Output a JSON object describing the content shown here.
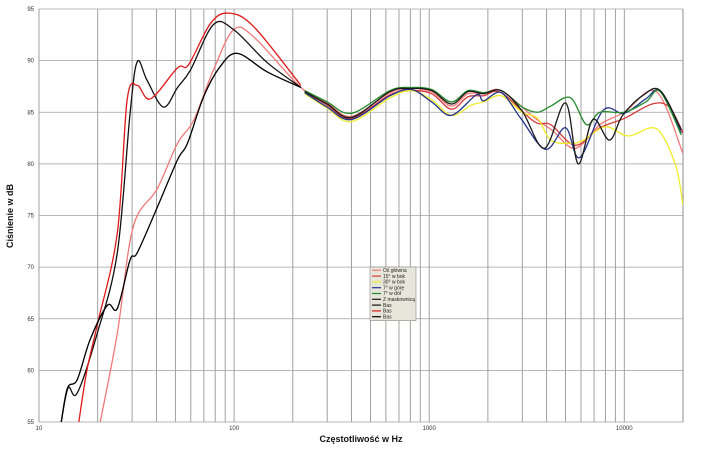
{
  "chart_data": {
    "type": "line",
    "title": "",
    "xlabel": "Częstotliwość w Hz",
    "ylabel": "Ciśnienie w dB",
    "xscale": "log",
    "xlim": [
      10,
      20000
    ],
    "ylim": [
      55,
      95
    ],
    "x_tick_labels": [
      "10",
      "100",
      "1000",
      "10000"
    ],
    "y_tick_labels": [
      "55",
      "60",
      "65",
      "70",
      "75",
      "80",
      "85",
      "90",
      "95"
    ],
    "grid": true,
    "legend_position": "center",
    "series": [
      {
        "name": "Oś główna",
        "color": "#f07878",
        "points": [
          [
            20.6,
            55
          ],
          [
            25.2,
            63.6
          ],
          [
            30.4,
            73.9
          ],
          [
            40.4,
            77.6
          ],
          [
            51.3,
            82
          ],
          [
            62,
            84.2
          ],
          [
            78.4,
            89.1
          ],
          [
            99.5,
            93
          ],
          [
            126,
            92.3
          ],
          [
            220,
            87.4
          ],
          [
            300,
            85.9
          ],
          [
            400,
            84.6
          ],
          [
            630,
            86.9
          ],
          [
            810,
            87.3
          ],
          [
            1030,
            87
          ],
          [
            1300,
            85.6
          ],
          [
            1580,
            86.8
          ],
          [
            1900,
            86.8
          ],
          [
            2340,
            87.1
          ],
          [
            3450,
            84.5
          ],
          [
            4300,
            83.2
          ],
          [
            5600,
            81.5
          ],
          [
            7500,
            83.8
          ],
          [
            10000,
            85
          ],
          [
            14600,
            87
          ],
          [
            20000,
            81
          ]
        ]
      },
      {
        "name": "15° w bok",
        "color": "#d83838",
        "points": [
          [
            230,
            87
          ],
          [
            300,
            85.7
          ],
          [
            400,
            84.4
          ],
          [
            630,
            86.7
          ],
          [
            810,
            87.1
          ],
          [
            1030,
            86.8
          ],
          [
            1300,
            85.3
          ],
          [
            1580,
            86.5
          ],
          [
            1900,
            86.6
          ],
          [
            2340,
            86.9
          ],
          [
            3450,
            84.1
          ],
          [
            4200,
            83.8
          ],
          [
            5600,
            81.8
          ],
          [
            7500,
            83.5
          ],
          [
            10000,
            84.4
          ],
          [
            13900,
            85.8
          ],
          [
            17000,
            85.5
          ],
          [
            20000,
            83
          ]
        ]
      },
      {
        "name": "30° w bok",
        "color": "#f0ec28",
        "points": [
          [
            230,
            86.8
          ],
          [
            300,
            85.4
          ],
          [
            400,
            84.1
          ],
          [
            630,
            86.4
          ],
          [
            810,
            87.1
          ],
          [
            1030,
            86.2
          ],
          [
            1300,
            84.7
          ],
          [
            1650,
            85.7
          ],
          [
            1900,
            86
          ],
          [
            2340,
            86.6
          ],
          [
            3000,
            85
          ],
          [
            3600,
            84.4
          ],
          [
            4200,
            82.3
          ],
          [
            5300,
            82
          ],
          [
            6200,
            82.3
          ],
          [
            8000,
            83.6
          ],
          [
            10500,
            82.7
          ],
          [
            14600,
            83.4
          ],
          [
            18300,
            79.9
          ],
          [
            20000,
            76
          ]
        ]
      },
      {
        "name": "7° w górę",
        "color": "#24348a",
        "points": [
          [
            230,
            86.9
          ],
          [
            300,
            85.5
          ],
          [
            400,
            84.3
          ],
          [
            630,
            86.6
          ],
          [
            810,
            87.2
          ],
          [
            1030,
            86
          ],
          [
            1300,
            84.7
          ],
          [
            1750,
            86.7
          ],
          [
            1900,
            86.1
          ],
          [
            2340,
            86.9
          ],
          [
            2950,
            84.4
          ],
          [
            3950,
            81.4
          ],
          [
            5000,
            83.5
          ],
          [
            5900,
            80.6
          ],
          [
            7800,
            85.2
          ],
          [
            10000,
            84.9
          ],
          [
            12900,
            86.3
          ],
          [
            15300,
            87
          ],
          [
            19600,
            83
          ]
        ]
      },
      {
        "name": "7° w dół",
        "color": "#248a2c",
        "points": [
          [
            230,
            87.1
          ],
          [
            300,
            86
          ],
          [
            400,
            84.9
          ],
          [
            630,
            87.1
          ],
          [
            810,
            87.4
          ],
          [
            1030,
            87.2
          ],
          [
            1300,
            86
          ],
          [
            1580,
            87.1
          ],
          [
            1900,
            86.9
          ],
          [
            2340,
            87.1
          ],
          [
            3000,
            85.5
          ],
          [
            3600,
            85
          ],
          [
            4200,
            85.6
          ],
          [
            5300,
            86.4
          ],
          [
            6400,
            83.8
          ],
          [
            7500,
            85
          ],
          [
            10000,
            85
          ],
          [
            12900,
            86
          ],
          [
            15300,
            87
          ],
          [
            19600,
            82.8
          ]
        ]
      },
      {
        "name": "Z maskownicą",
        "color": "#1a1a1a",
        "points": [
          [
            230,
            87
          ],
          [
            300,
            85.8
          ],
          [
            400,
            84.5
          ],
          [
            630,
            87
          ],
          [
            810,
            87.3
          ],
          [
            1030,
            87.1
          ],
          [
            1300,
            85.8
          ],
          [
            1580,
            87
          ],
          [
            1900,
            86.8
          ],
          [
            2340,
            87.1
          ],
          [
            3000,
            85.1
          ],
          [
            3900,
            81.5
          ],
          [
            5000,
            85.9
          ],
          [
            5800,
            80
          ],
          [
            6900,
            84.3
          ],
          [
            8400,
            82.3
          ],
          [
            9800,
            84.7
          ],
          [
            12400,
            86.6
          ],
          [
            15300,
            87.1
          ],
          [
            19600,
            83.3
          ]
        ]
      },
      {
        "name": "Bas",
        "color": "#111111",
        "points": [
          [
            13,
            55
          ],
          [
            14.1,
            58.3
          ],
          [
            15.7,
            57.8
          ],
          [
            19.9,
            63.6
          ],
          [
            25.2,
            71.4
          ],
          [
            29.3,
            84.9
          ],
          [
            31.9,
            89.9
          ],
          [
            35.8,
            88.1
          ],
          [
            43.4,
            85.5
          ],
          [
            51.3,
            87.4
          ],
          [
            59.8,
            89.1
          ],
          [
            78.4,
            93.5
          ],
          [
            99.5,
            93
          ],
          [
            148,
            89.8
          ],
          [
            220,
            87.4
          ]
        ]
      },
      {
        "name": "Bas",
        "color": "#e01818",
        "points": [
          [
            16,
            55
          ],
          [
            17.6,
            60
          ],
          [
            20,
            64.6
          ],
          [
            25.2,
            73.3
          ],
          [
            28.3,
            86.2
          ],
          [
            31.9,
            87.6
          ],
          [
            37.3,
            86.3
          ],
          [
            51.3,
            89.3
          ],
          [
            58.4,
            89.6
          ],
          [
            75.7,
            93.6
          ],
          [
            93.8,
            94.6
          ],
          [
            126,
            93.3
          ],
          [
            220,
            87.6
          ]
        ]
      },
      {
        "name": "Bas",
        "color": "#000000",
        "points": [
          [
            13,
            55
          ],
          [
            14,
            58.3
          ],
          [
            15.7,
            59.1
          ],
          [
            18.3,
            63
          ],
          [
            22.4,
            66.3
          ],
          [
            25.2,
            66
          ],
          [
            29.3,
            70.7
          ],
          [
            31.9,
            71.4
          ],
          [
            40.4,
            75.8
          ],
          [
            51.3,
            80.4
          ],
          [
            57.7,
            82
          ],
          [
            69.8,
            86.5
          ],
          [
            84.7,
            89.4
          ],
          [
            104,
            90.7
          ],
          [
            148,
            88.9
          ],
          [
            220,
            87.4
          ]
        ]
      }
    ]
  }
}
